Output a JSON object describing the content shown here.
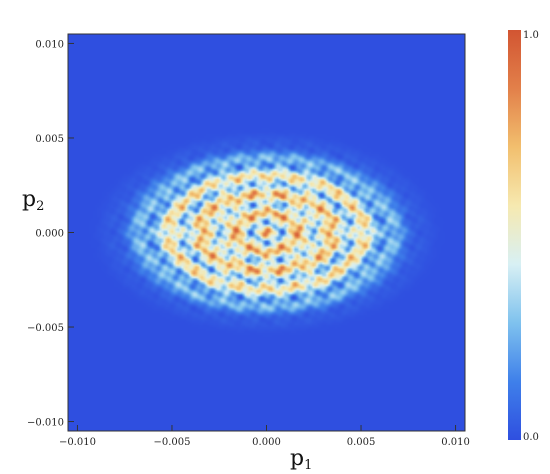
{
  "chart_data": {
    "type": "heatmap",
    "title": "",
    "xlabel": "p",
    "xlabel_subscript": "1",
    "ylabel": "p",
    "ylabel_subscript": "2",
    "xlim": [
      -0.0105,
      0.0105
    ],
    "ylim": [
      -0.0105,
      0.0105
    ],
    "x_ticks": [
      -0.01,
      -0.005,
      0.0,
      0.005,
      0.01
    ],
    "x_tick_labels": [
      "−0.010",
      "−0.005",
      "0.000",
      "0.005",
      "0.010"
    ],
    "y_ticks": [
      -0.01,
      -0.005,
      0.0,
      0.005,
      0.01
    ],
    "y_tick_labels": [
      "−0.010",
      "−0.005",
      "0.000",
      "0.005",
      "0.010"
    ],
    "colorbar": {
      "min": 0.0,
      "max": 1.0,
      "min_label": "0.0",
      "max_label": "1.0",
      "colormap": [
        "#2f4fe0",
        "#3f80ea",
        "#7fc2ee",
        "#d8f0f4",
        "#f6e9b0",
        "#f2bf6e",
        "#e2804a",
        "#d25532"
      ]
    },
    "background_color": "#2f4fe0",
    "pattern": {
      "description_values": "interference fringes concentrated in an ellipse centered at (0,0)",
      "center": [
        0.0,
        0.0
      ],
      "semi_axis_p1": 0.0072,
      "semi_axis_p2": 0.0042,
      "peak_value": 1.0
    },
    "grid": false,
    "legend": "colorbar-right"
  }
}
